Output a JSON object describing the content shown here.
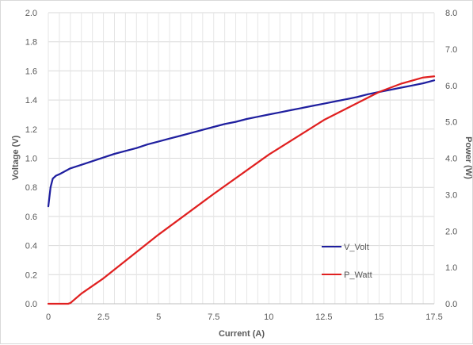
{
  "chart_data": {
    "type": "line",
    "title": "",
    "xlabel": "Current (A)",
    "ylabel": "Voltage (V)",
    "y2label": "Power (W)",
    "xlim": [
      0,
      17.5
    ],
    "ylim": [
      0,
      2.0
    ],
    "y2lim": [
      0,
      8.0
    ],
    "xticks": [
      "0",
      "2.5",
      "5",
      "7.5",
      "10",
      "12.5",
      "15",
      "17.5"
    ],
    "yticks": [
      "0.0",
      "0.2",
      "0.4",
      "0.6",
      "0.8",
      "1.0",
      "1.2",
      "1.4",
      "1.6",
      "1.8",
      "2.0"
    ],
    "y2ticks": [
      "0.0",
      "1.0",
      "2.0",
      "3.0",
      "4.0",
      "5.0",
      "6.0",
      "7.0",
      "8.0"
    ],
    "grid": true,
    "legend_position": "center-right",
    "series": [
      {
        "name": "V_Volt",
        "axis": "left",
        "color": "#1f1f9f",
        "x": [
          0,
          0.1,
          0.2,
          0.35,
          0.5,
          1.0,
          1.5,
          2.0,
          2.5,
          3.0,
          3.5,
          4.0,
          4.5,
          5.0,
          5.5,
          6.0,
          6.5,
          7.0,
          7.5,
          8.0,
          8.5,
          9.0,
          9.5,
          10.0,
          10.5,
          11.0,
          11.5,
          12.0,
          12.5,
          13.0,
          13.5,
          14.0,
          14.5,
          15.0,
          15.5,
          16.0,
          16.5,
          17.0,
          17.5
        ],
        "y": [
          0.67,
          0.8,
          0.86,
          0.88,
          0.89,
          0.93,
          0.955,
          0.98,
          1.005,
          1.03,
          1.05,
          1.07,
          1.095,
          1.115,
          1.135,
          1.155,
          1.175,
          1.195,
          1.215,
          1.235,
          1.25,
          1.27,
          1.285,
          1.3,
          1.315,
          1.33,
          1.345,
          1.36,
          1.375,
          1.39,
          1.405,
          1.42,
          1.44,
          1.455,
          1.47,
          1.485,
          1.5,
          1.515,
          1.535
        ]
      },
      {
        "name": "P_Watt",
        "axis": "right",
        "color": "#e02020",
        "x": [
          0,
          0.5,
          0.9,
          1.0,
          1.5,
          2.5,
          5.0,
          7.5,
          10.0,
          12.5,
          15.0,
          16.0,
          17.0,
          17.5
        ],
        "y": [
          0,
          0,
          0,
          0.02,
          0.28,
          0.7,
          1.9,
          3.02,
          4.1,
          5.05,
          5.82,
          6.05,
          6.22,
          6.25
        ]
      }
    ]
  }
}
